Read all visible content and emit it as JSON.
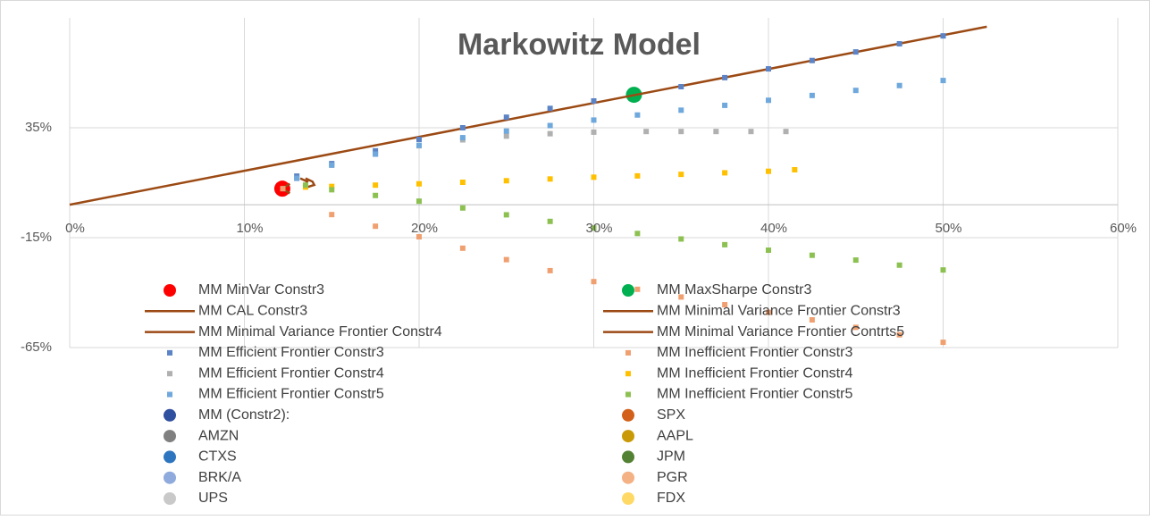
{
  "chart_data": {
    "type": "scatter",
    "title": "Markowitz Model",
    "xlim": [
      0,
      60
    ],
    "xticks": [
      {
        "value": 0,
        "label": "0%"
      },
      {
        "value": 10,
        "label": "10%"
      },
      {
        "value": 20,
        "label": "20%"
      },
      {
        "value": 30,
        "label": "30%"
      },
      {
        "value": 40,
        "label": "40%"
      },
      {
        "value": 50,
        "label": "50%"
      },
      {
        "value": 60,
        "label": "60%"
      }
    ],
    "ylim": [
      -65,
      85
    ],
    "yticks": [
      {
        "value": -65,
        "label": "-65%"
      },
      {
        "value": -15,
        "label": "-15%"
      },
      {
        "value": 35,
        "label": "35%"
      }
    ],
    "grid": true,
    "series": [
      {
        "name": "MM MinVar Constr3",
        "color": "#ff0000",
        "marker": "circle",
        "x": [
          12.17
        ],
        "values": [
          7.3
        ]
      },
      {
        "name": "MM MaxSharpe Constr3",
        "color": "#00b050",
        "marker": "circle",
        "x": [
          32.3
        ],
        "values": [
          50
        ]
      },
      {
        "name": "MM CAL Constr3",
        "color": "#9c4a14",
        "marker": "line",
        "x": [
          0,
          52.5
        ],
        "values": [
          0,
          81
        ]
      },
      {
        "name": "MM Minimal Variance Frontier Constr3",
        "color": "#9c4a14",
        "marker": "line",
        "x": [
          12.6,
          12.17,
          12.6
        ],
        "values": [
          9.5,
          7.3,
          5.2
        ]
      },
      {
        "name": "MM Minimal Variance Frontier Constr4",
        "color": "#9c4a14",
        "marker": "line",
        "x": [
          13.5,
          13.9,
          14,
          13.6
        ],
        "values": [
          12,
          10.5,
          9,
          8
        ]
      },
      {
        "name": "MM Minimal Variance Frontier Contrts5",
        "color": "#9c4a14",
        "marker": "line",
        "x": [
          13.2,
          13.6,
          13.5
        ],
        "values": [
          12,
          10.5,
          8.9
        ]
      },
      {
        "name": "MM Efficient Frontier Constr3",
        "color": "#5b83c6",
        "marker": "square",
        "x": [
          12.2,
          13,
          15,
          17.5,
          20,
          22.5,
          25,
          27.5,
          30,
          35,
          37.5,
          40,
          42.5,
          45,
          47.5,
          50
        ],
        "values": [
          7.3,
          13,
          18.7,
          24.5,
          29.7,
          35,
          39.8,
          43.8,
          47.2,
          53.7,
          57.8,
          61.8,
          65.6,
          69.5,
          73.2,
          76.8
        ]
      },
      {
        "name": "MM Inefficient Frontier Constr3",
        "color": "#f0a070",
        "marker": "square",
        "x": [
          12.2,
          15,
          17.5,
          20,
          22.5,
          25,
          27.5,
          30,
          32.5,
          35,
          37.5,
          40,
          42.5,
          45,
          47.5,
          50
        ],
        "values": [
          7.3,
          -4.5,
          -9.8,
          -14.6,
          -19.8,
          -25,
          -30,
          -35,
          -38.5,
          -42,
          -45.5,
          -49,
          -52.4,
          -55.8,
          -59.2,
          -62.6
        ]
      },
      {
        "name": "MM Efficient Frontier Constr4",
        "color": "#b0b0b0",
        "marker": "square",
        "x": [
          13,
          15,
          17.5,
          20,
          22.5,
          25,
          27.5,
          30,
          33,
          35,
          37,
          39,
          41
        ],
        "values": [
          12,
          18,
          23,
          26.8,
          29.5,
          31.2,
          32.3,
          33,
          33.3,
          33.3,
          33.3,
          33.3,
          33.3
        ]
      },
      {
        "name": "MM Inefficient Frontier Constr4",
        "color": "#ffc000",
        "marker": "square",
        "x": [
          13.5,
          15,
          17.5,
          20,
          22.5,
          25,
          27.5,
          30,
          32.5,
          35,
          37.5,
          40,
          41.5
        ],
        "values": [
          8,
          8.3,
          8.9,
          9.5,
          10.2,
          10.9,
          11.7,
          12.5,
          13.1,
          13.8,
          14.5,
          15.2,
          15.9
        ]
      },
      {
        "name": "MM Efficient Frontier Constr5",
        "color": "#6fa8dc",
        "marker": "square",
        "x": [
          13,
          15,
          17.5,
          20,
          22.5,
          25,
          27.5,
          30,
          32.5,
          35,
          37.5,
          40,
          42.5,
          45,
          47.5,
          50
        ],
        "values": [
          12,
          18,
          23,
          27,
          30.5,
          33.5,
          36,
          38.5,
          40.8,
          43,
          45.2,
          47.5,
          49.7,
          52,
          54.2,
          56.5
        ]
      },
      {
        "name": "MM Inefficient Frontier Constr5",
        "color": "#8cc152",
        "marker": "square",
        "x": [
          13.5,
          15,
          17.5,
          20,
          22.5,
          25,
          27.5,
          30,
          32.5,
          35,
          37.5,
          40,
          42.5,
          45,
          47.5,
          50
        ],
        "values": [
          8.9,
          6.8,
          4.2,
          1.6,
          -1.5,
          -4.6,
          -7.6,
          -10.6,
          -13.1,
          -15.6,
          -18.2,
          -20.7,
          -23,
          -25.2,
          -27.5,
          -29.7
        ]
      },
      {
        "name": "MM (Constr2):",
        "color": "#2f4f9f",
        "marker": "circle",
        "x": [],
        "values": []
      },
      {
        "name": "SPX",
        "color": "#d2601a",
        "marker": "circle",
        "x": [],
        "values": []
      },
      {
        "name": "AMZN",
        "color": "#808080",
        "marker": "circle",
        "x": [],
        "values": []
      },
      {
        "name": "AAPL",
        "color": "#c99a06",
        "marker": "circle",
        "x": [],
        "values": []
      },
      {
        "name": "CTXS",
        "color": "#2e75c0",
        "marker": "circle",
        "x": [],
        "values": []
      },
      {
        "name": "JPM",
        "color": "#548235",
        "marker": "circle",
        "x": [],
        "values": []
      },
      {
        "name": "BRK/A",
        "color": "#8faadc",
        "marker": "circle",
        "x": [],
        "values": []
      },
      {
        "name": "PGR",
        "color": "#f4b183",
        "marker": "circle",
        "x": [],
        "values": []
      },
      {
        "name": "UPS",
        "color": "#c9c9c9",
        "marker": "circle",
        "x": [],
        "values": []
      },
      {
        "name": "FDX",
        "color": "#ffd966",
        "marker": "circle",
        "x": [],
        "values": []
      }
    ]
  }
}
